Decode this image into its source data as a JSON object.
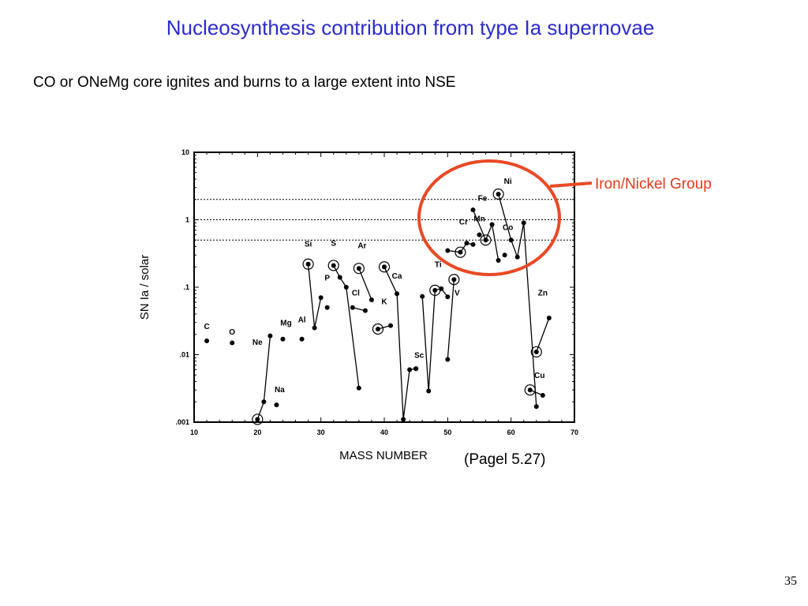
{
  "slide": {
    "title": "Nucleosynthesis contribution from type Ia supernovae",
    "subtitle": "CO or ONeMg core ignites and burns to a large extent into NSE",
    "citation": "(Pagel 5.27)",
    "page_number": "35",
    "callout": {
      "label": "Iron/Nickel Group",
      "color": "#e2391d"
    }
  },
  "chart_data": {
    "type": "scatter",
    "title": "",
    "xlabel": "MASS NUMBER",
    "ylabel": "SN Ia / solar",
    "xlim": [
      10,
      70
    ],
    "ylim": [
      0.001,
      10
    ],
    "yscale": "log",
    "xticks": [
      10,
      20,
      30,
      40,
      50,
      60,
      70
    ],
    "yticks": [
      {
        "value": 0.001,
        "label": ".001"
      },
      {
        "value": 0.01,
        "label": ".01"
      },
      {
        "value": 0.1,
        "label": ".1"
      },
      {
        "value": 1,
        "label": "1"
      },
      {
        "value": 10,
        "label": "10"
      }
    ],
    "reference_lines": [
      0.5,
      1,
      2
    ],
    "grid": false,
    "elements": [
      {
        "label": "C",
        "points": [
          [
            12,
            0.016
          ]
        ],
        "label_at": [
          12,
          0.024
        ]
      },
      {
        "label": "O",
        "points": [
          [
            16,
            0.015
          ]
        ],
        "label_at": [
          16,
          0.02
        ]
      },
      {
        "label": "Ne",
        "points": [
          [
            20,
            0.0011
          ],
          [
            21,
            0.002
          ],
          [
            22,
            0.019
          ]
        ],
        "circled": [
          20
        ],
        "label_at": [
          20,
          0.014
        ]
      },
      {
        "label": "Na",
        "points": [
          [
            23,
            0.0018
          ]
        ],
        "label_at": [
          23.5,
          0.0028
        ]
      },
      {
        "label": "Mg",
        "points": [
          [
            24,
            0.017
          ]
        ],
        "label_at": [
          24.5,
          0.027
        ]
      },
      {
        "label": "Al",
        "points": [
          [
            27,
            0.017
          ]
        ],
        "label_at": [
          27,
          0.03
        ]
      },
      {
        "label": "Si",
        "points": [
          [
            28,
            0.22
          ],
          [
            29,
            0.025
          ],
          [
            30,
            0.07
          ]
        ],
        "circled": [
          28
        ],
        "label_at": [
          28,
          0.4
        ]
      },
      {
        "label": "P",
        "points": [
          [
            31,
            0.05
          ]
        ],
        "label_at": [
          31,
          0.125
        ]
      },
      {
        "label": "S",
        "points": [
          [
            32,
            0.21
          ],
          [
            33,
            0.14
          ],
          [
            34,
            0.1
          ],
          [
            36,
            0.0032
          ]
        ],
        "circled": [
          32
        ],
        "label_at": [
          32,
          0.41
        ]
      },
      {
        "label": "Cl",
        "points": [
          [
            35,
            0.05
          ],
          [
            37,
            0.045
          ]
        ],
        "label_at": [
          35.5,
          0.075
        ]
      },
      {
        "label": "Ar",
        "points": [
          [
            36,
            0.19
          ],
          [
            38,
            0.065
          ]
        ],
        "circled": [
          36
        ],
        "label_at": [
          36.5,
          0.38
        ]
      },
      {
        "label": "K",
        "points": [
          [
            39,
            0.024
          ],
          [
            41,
            0.027
          ]
        ],
        "circled": [
          39
        ],
        "label_at": [
          40,
          0.056
        ]
      },
      {
        "label": "Ca",
        "points": [
          [
            40,
            0.2
          ],
          [
            42,
            0.08
          ],
          [
            43,
            0.0011
          ],
          [
            44,
            0.006
          ],
          [
            45,
            0.0062
          ]
        ],
        "circled": [
          40
        ],
        "label_at": [
          42,
          0.135
        ]
      },
      {
        "label": "Sc",
        "points": [
          [
            45,
            0.0062
          ]
        ],
        "label_at": [
          45.5,
          0.009
        ]
      },
      {
        "label": "Ti",
        "points": [
          [
            46,
            0.073
          ],
          [
            47,
            0.0029
          ],
          [
            48,
            0.09
          ],
          [
            49,
            0.095
          ],
          [
            50,
            0.072
          ]
        ],
        "circled": [
          48
        ],
        "label_at": [
          48.5,
          0.2
        ]
      },
      {
        "label": "V",
        "points": [
          [
            50,
            0.0085
          ],
          [
            51,
            0.13
          ]
        ],
        "circled": [
          51
        ],
        "label_at": [
          51.5,
          0.075
        ]
      },
      {
        "label": "Cr",
        "points": [
          [
            50,
            0.35
          ],
          [
            52,
            0.33
          ],
          [
            53,
            0.45
          ],
          [
            54,
            0.43
          ]
        ],
        "circled": [
          52
        ],
        "label_at": [
          52.5,
          0.85
        ]
      },
      {
        "label": "Mn",
        "points": [
          [
            55,
            0.6
          ]
        ],
        "label_at": [
          55,
          0.95
        ]
      },
      {
        "label": "Fe",
        "points": [
          [
            54,
            1.4
          ],
          [
            56,
            0.5
          ],
          [
            57,
            0.85
          ],
          [
            58,
            0.25
          ]
        ],
        "circled": [
          56
        ],
        "label_at": [
          55.5,
          1.9
        ]
      },
      {
        "label": "Co",
        "points": [
          [
            59,
            0.3
          ]
        ],
        "label_at": [
          59.5,
          0.7
        ]
      },
      {
        "label": "Ni",
        "points": [
          [
            58,
            2.4
          ],
          [
            60,
            0.5
          ],
          [
            61,
            0.28
          ],
          [
            62,
            0.9
          ],
          [
            64,
            0.0017
          ]
        ],
        "circled": [
          58
        ],
        "label_at": [
          59.5,
          3.4
        ]
      },
      {
        "label": "Cu",
        "points": [
          [
            63,
            0.003
          ],
          [
            65,
            0.0025
          ]
        ],
        "circled": [
          63
        ],
        "label_at": [
          64.5,
          0.0045
        ]
      },
      {
        "label": "Zn",
        "points": [
          [
            64,
            0.011
          ],
          [
            66,
            0.035
          ]
        ],
        "circled": [
          64
        ],
        "label_at": [
          65,
          0.075
        ]
      }
    ]
  }
}
